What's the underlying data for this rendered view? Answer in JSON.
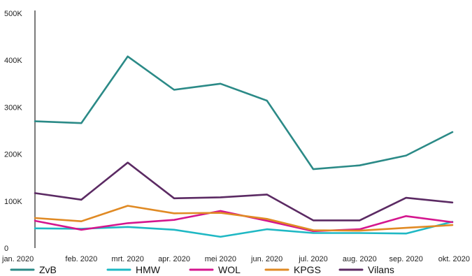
{
  "chart_data": {
    "type": "line",
    "title": "",
    "xlabel": "",
    "ylabel": "",
    "categories": [
      "jan. 2020",
      "feb. 2020",
      "mrt. 2020",
      "apr. 2020",
      "mei 2020",
      "jun. 2020",
      "jul. 2020",
      "aug. 2020",
      "sep. 2020",
      "okt. 2020"
    ],
    "y_ticks": [
      {
        "value": 0,
        "label": "0"
      },
      {
        "value": 100000,
        "label": "100K"
      },
      {
        "value": 200000,
        "label": "200K"
      },
      {
        "value": 300000,
        "label": "300K"
      },
      {
        "value": 400000,
        "label": "400K"
      },
      {
        "value": 500000,
        "label": "500K"
      }
    ],
    "ylim": [
      0,
      500000
    ],
    "grid": false,
    "legend_position": "bottom",
    "series": [
      {
        "name": "ZvB",
        "color": "#2b8a87",
        "values": [
          270000,
          266000,
          408000,
          337000,
          350000,
          314000,
          168000,
          176000,
          197000,
          247000
        ]
      },
      {
        "name": "HMW",
        "color": "#1fb8c4",
        "values": [
          42000,
          41000,
          45000,
          39000,
          24000,
          40000,
          32000,
          32000,
          31000,
          56000
        ]
      },
      {
        "name": "WOL",
        "color": "#d4168e",
        "values": [
          58000,
          39000,
          53000,
          60000,
          79000,
          58000,
          36000,
          40000,
          68000,
          55000
        ]
      },
      {
        "name": "KPGS",
        "color": "#e08a24",
        "values": [
          64000,
          57000,
          90000,
          74000,
          75000,
          62000,
          38000,
          37000,
          43000,
          49000
        ]
      },
      {
        "name": "Vilans",
        "color": "#5b2a63",
        "values": [
          117000,
          103000,
          182000,
          106000,
          108000,
          114000,
          59000,
          59000,
          107000,
          97000
        ]
      }
    ]
  }
}
